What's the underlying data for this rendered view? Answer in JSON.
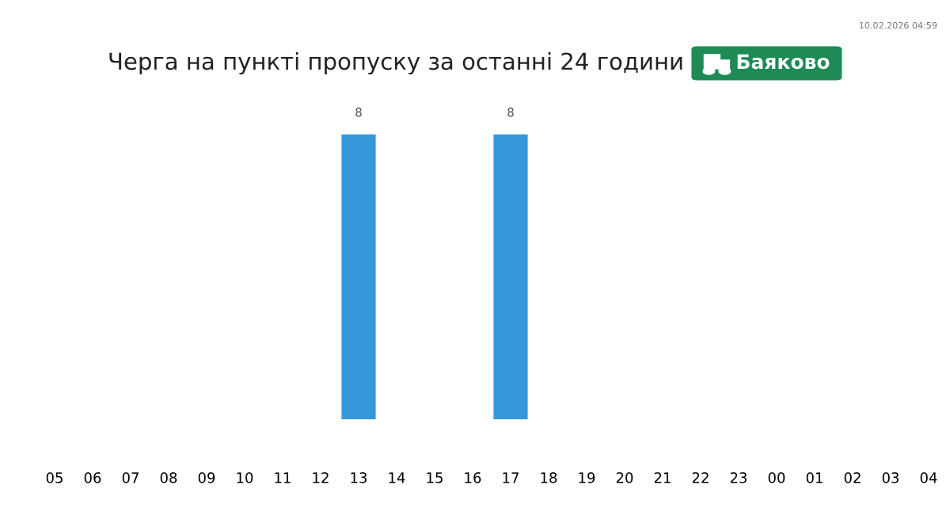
{
  "chart_data": {
    "type": "bar",
    "title": "Черга на пункті пропуску за останні 24 години",
    "subtitle": "Баяково",
    "categories": [
      "05",
      "06",
      "07",
      "08",
      "09",
      "10",
      "11",
      "12",
      "13",
      "14",
      "15",
      "16",
      "17",
      "18",
      "19",
      "20",
      "21",
      "22",
      "23",
      "00",
      "01",
      "02",
      "03",
      "04"
    ],
    "values": [
      0,
      0,
      0,
      0,
      0,
      0,
      0,
      0,
      8,
      0,
      0,
      0,
      8,
      0,
      0,
      0,
      0,
      0,
      0,
      0,
      0,
      0,
      0,
      0
    ],
    "value_labels": [
      null,
      null,
      null,
      null,
      null,
      null,
      null,
      null,
      "8",
      null,
      null,
      null,
      "8",
      null,
      null,
      null,
      null,
      null,
      null,
      null,
      null,
      null,
      null,
      null
    ],
    "color": "#3498db",
    "annotations": [
      "10.02.2026 04:59"
    ],
    "grid": false,
    "legend": false
  }
}
